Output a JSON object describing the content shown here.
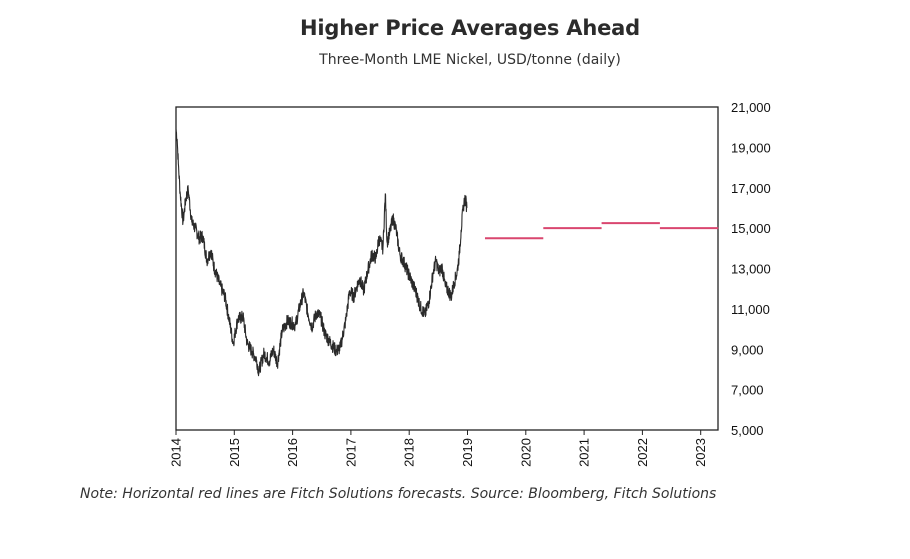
{
  "chart_data": {
    "type": "line",
    "title": "Higher Price Averages Ahead",
    "subtitle": "Three-Month LME Nickel, USD/tonne (daily)",
    "note": "Note: Horizontal red lines are Fitch Solutions forecasts. Source: Bloomberg, Fitch Solutions",
    "xlabel": "",
    "ylabel": "",
    "xlim": [
      2014,
      2023.3
    ],
    "ylim": [
      5000,
      21000
    ],
    "y_axis_position": "right",
    "grid": false,
    "legend": "none",
    "x_ticks": [
      "2014",
      "2015",
      "2016",
      "2017",
      "2018",
      "2019",
      "2020",
      "2021",
      "2022",
      "2023"
    ],
    "y_ticks": [
      "5,000",
      "7,000",
      "9,000",
      "11,000",
      "13,000",
      "15,000",
      "17,000",
      "19,000",
      "21,000"
    ],
    "y_tick_values": [
      5000,
      7000,
      9000,
      11000,
      13000,
      15000,
      17000,
      19000,
      21000
    ],
    "x_tick_values": [
      2014,
      2015,
      2016,
      2017,
      2018,
      2019,
      2020,
      2021,
      2022,
      2023
    ],
    "series": [
      {
        "name": "Three-Month LME Nickel (daily)",
        "color": "#2a2a2a",
        "points": [
          [
            2014.0,
            19900
          ],
          [
            2014.02,
            19400
          ],
          [
            2014.04,
            18200
          ],
          [
            2014.07,
            16800
          ],
          [
            2014.12,
            15300
          ],
          [
            2014.17,
            16500
          ],
          [
            2014.21,
            16900
          ],
          [
            2014.27,
            15300
          ],
          [
            2014.33,
            15000
          ],
          [
            2014.4,
            14500
          ],
          [
            2014.46,
            14600
          ],
          [
            2014.53,
            13400
          ],
          [
            2014.6,
            13900
          ],
          [
            2014.65,
            13100
          ],
          [
            2014.75,
            12200
          ],
          [
            2014.84,
            11600
          ],
          [
            2014.91,
            10500
          ],
          [
            2014.98,
            9300
          ],
          [
            2015.06,
            10500
          ],
          [
            2015.15,
            10600
          ],
          [
            2015.22,
            9300
          ],
          [
            2015.3,
            8900
          ],
          [
            2015.38,
            8500
          ],
          [
            2015.42,
            7900
          ],
          [
            2015.51,
            8800
          ],
          [
            2015.6,
            8400
          ],
          [
            2015.67,
            9000
          ],
          [
            2015.74,
            8300
          ],
          [
            2015.82,
            9900
          ],
          [
            2015.91,
            10400
          ],
          [
            2015.98,
            10300
          ],
          [
            2016.05,
            10200
          ],
          [
            2016.12,
            11100
          ],
          [
            2016.19,
            11800
          ],
          [
            2016.26,
            10800
          ],
          [
            2016.33,
            10100
          ],
          [
            2016.41,
            10800
          ],
          [
            2016.48,
            10600
          ],
          [
            2016.55,
            9800
          ],
          [
            2016.63,
            9400
          ],
          [
            2016.75,
            8900
          ],
          [
            2016.82,
            9100
          ],
          [
            2016.91,
            10400
          ],
          [
            2016.98,
            11900
          ],
          [
            2017.05,
            11600
          ],
          [
            2017.1,
            12100
          ],
          [
            2017.15,
            12500
          ],
          [
            2017.22,
            11900
          ],
          [
            2017.29,
            12900
          ],
          [
            2017.36,
            13700
          ],
          [
            2017.43,
            13500
          ],
          [
            2017.48,
            14500
          ],
          [
            2017.55,
            14000
          ],
          [
            2017.59,
            16700
          ],
          [
            2017.62,
            14300
          ],
          [
            2017.67,
            14800
          ],
          [
            2017.72,
            15500
          ],
          [
            2017.77,
            15000
          ],
          [
            2017.84,
            13700
          ],
          [
            2017.91,
            13300
          ],
          [
            2017.98,
            12800
          ],
          [
            2018.05,
            12300
          ],
          [
            2018.12,
            11800
          ],
          [
            2018.19,
            11100
          ],
          [
            2018.27,
            10700
          ],
          [
            2018.34,
            11400
          ],
          [
            2018.41,
            12800
          ],
          [
            2018.46,
            13400
          ],
          [
            2018.51,
            12800
          ],
          [
            2018.56,
            13100
          ],
          [
            2018.62,
            12100
          ],
          [
            2018.67,
            11900
          ],
          [
            2018.72,
            11600
          ],
          [
            2018.77,
            12300
          ],
          [
            2018.82,
            12800
          ],
          [
            2018.86,
            13700
          ],
          [
            2018.89,
            14900
          ],
          [
            2018.93,
            16100
          ],
          [
            2018.96,
            16500
          ],
          [
            2018.99,
            16000
          ]
        ]
      }
    ],
    "forecasts": {
      "name": "Fitch Solutions forecasts",
      "color": "#d9466f",
      "segments": [
        {
          "x0": 2019.3,
          "x1": 2020.3,
          "value": 14500
        },
        {
          "x0": 2020.3,
          "x1": 2021.3,
          "value": 15000
        },
        {
          "x0": 2021.3,
          "x1": 2022.3,
          "value": 15250
        },
        {
          "x0": 2022.3,
          "x1": 2023.3,
          "value": 15000
        }
      ]
    }
  }
}
